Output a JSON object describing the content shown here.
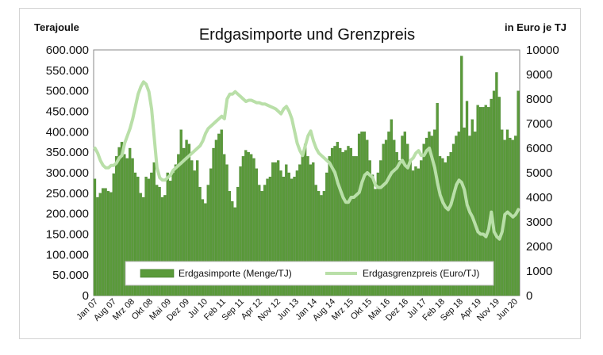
{
  "chart_data": {
    "type": "bar+line",
    "title": "Erdgasimporte und Grenzpreis",
    "ylabel_left": "Terajoule",
    "ylabel_right": "in Euro je TJ",
    "ylim_left": [
      0,
      600000
    ],
    "ylim_right": [
      0,
      10000
    ],
    "left_ticks": [
      "600.000",
      "550.000",
      "500.000",
      "450.000",
      "400.000",
      "350.000",
      "300.000",
      "250.000",
      "200.000",
      "150.000",
      "100.000",
      "50.000",
      "0"
    ],
    "right_ticks": [
      "10000",
      "9000",
      "8000",
      "7000",
      "6000",
      "5000",
      "4000",
      "3000",
      "2000",
      "1000",
      "0"
    ],
    "x_labels": [
      "Jan 07",
      "Aug 07",
      "Mrz 08",
      "Okt 08",
      "Mai 09",
      "Dez 09",
      "Jul 10",
      "Feb 11",
      "Sep 11",
      "Apr 12",
      "Nov 12",
      "Jun 13",
      "Jan 14",
      "Aug 14",
      "Mrz 15",
      "Okt 15",
      "Mai 16",
      "Dez 16",
      "Jul 17",
      "Feb 18",
      "Sep 18",
      "Apr 19",
      "Nov 19",
      "Jun 20"
    ],
    "grid": false,
    "legend_position": "bottom-inside",
    "colors": {
      "bars": "#5a9a3a",
      "bars_edge": "#3f7a26",
      "line": "#b9dfa8"
    },
    "series": [
      {
        "name": "Erdgasimporte (Menge/TJ)",
        "axis": "left",
        "type": "bar",
        "values": [
          285000,
          240000,
          250000,
          262000,
          262000,
          255000,
          252000,
          298000,
          340000,
          362000,
          375000,
          345000,
          335000,
          360000,
          335000,
          300000,
          290000,
          250000,
          240000,
          290000,
          285000,
          300000,
          325000,
          270000,
          265000,
          240000,
          245000,
          300000,
          280000,
          300000,
          320000,
          345000,
          405000,
          360000,
          380000,
          370000,
          330000,
          305000,
          330000,
          265000,
          235000,
          225000,
          270000,
          310000,
          360000,
          380000,
          395000,
          405000,
          345000,
          320000,
          255000,
          230000,
          215000,
          265000,
          315000,
          340000,
          355000,
          350000,
          345000,
          335000,
          310000,
          270000,
          255000,
          270000,
          285000,
          290000,
          325000,
          325000,
          330000,
          305000,
          290000,
          320000,
          300000,
          285000,
          290000,
          305000,
          320000,
          340000,
          370000,
          340000,
          320000,
          325000,
          270000,
          255000,
          245000,
          255000,
          300000,
          340000,
          360000,
          365000,
          375000,
          360000,
          350000,
          355000,
          365000,
          360000,
          340000,
          340000,
          395000,
          400000,
          400000,
          380000,
          330000,
          295000,
          260000,
          300000,
          330000,
          370000,
          380000,
          400000,
          430000,
          380000,
          350000,
          330000,
          390000,
          400000,
          370000,
          330000,
          305000,
          315000,
          310000,
          330000,
          370000,
          385000,
          400000,
          390000,
          405000,
          470000,
          340000,
          335000,
          325000,
          340000,
          350000,
          370000,
          390000,
          400000,
          585000,
          410000,
          475000,
          390000,
          430000,
          400000,
          465000,
          460000,
          460000,
          465000,
          460000,
          480000,
          500000,
          545000,
          485000,
          405000,
          380000,
          405000,
          385000,
          380000,
          390000,
          500000
        ]
      },
      {
        "name": "Erdgasgrenzpreis (Euro/TJ)",
        "axis": "right",
        "type": "line",
        "values": [
          6000,
          5800,
          5500,
          5300,
          5200,
          5200,
          5300,
          5300,
          5400,
          5600,
          5700,
          6200,
          6500,
          6800,
          7200,
          7700,
          8200,
          8500,
          8700,
          8600,
          8300,
          7600,
          6400,
          5200,
          4800,
          4700,
          4700,
          4800,
          4900,
          5100,
          5200,
          5300,
          5400,
          5500,
          5600,
          5700,
          5800,
          5900,
          6000,
          6100,
          6300,
          6600,
          6800,
          6900,
          7000,
          7100,
          7200,
          7300,
          7200,
          8000,
          8200,
          8200,
          8300,
          8200,
          8100,
          8000,
          7900,
          7950,
          7950,
          7900,
          7850,
          7850,
          7800,
          7800,
          7750,
          7700,
          7650,
          7600,
          7500,
          7400,
          7600,
          7700,
          7500,
          7200,
          6700,
          6200,
          5900,
          5700,
          6100,
          6500,
          6700,
          6300,
          6000,
          5800,
          5700,
          5600,
          5500,
          5400,
          5200,
          5000,
          4600,
          4300,
          4000,
          3800,
          3800,
          4000,
          4000,
          4100,
          4200,
          4600,
          4900,
          5000,
          4900,
          4800,
          4500,
          4400,
          4400,
          4500,
          4600,
          4800,
          5000,
          5100,
          5200,
          5400,
          5500,
          5300,
          5200,
          5500,
          5600,
          5800,
          5900,
          5700,
          5700,
          5900,
          6000,
          5600,
          5200,
          4600,
          4100,
          3800,
          3600,
          3500,
          3700,
          4100,
          4500,
          4700,
          4600,
          4300,
          3700,
          3400,
          3200,
          2900,
          2600,
          2500,
          2500,
          2400,
          2700,
          3400,
          2600,
          2400,
          2300,
          2600,
          3300,
          3400,
          3300,
          3200,
          3300,
          3500
        ]
      }
    ]
  }
}
